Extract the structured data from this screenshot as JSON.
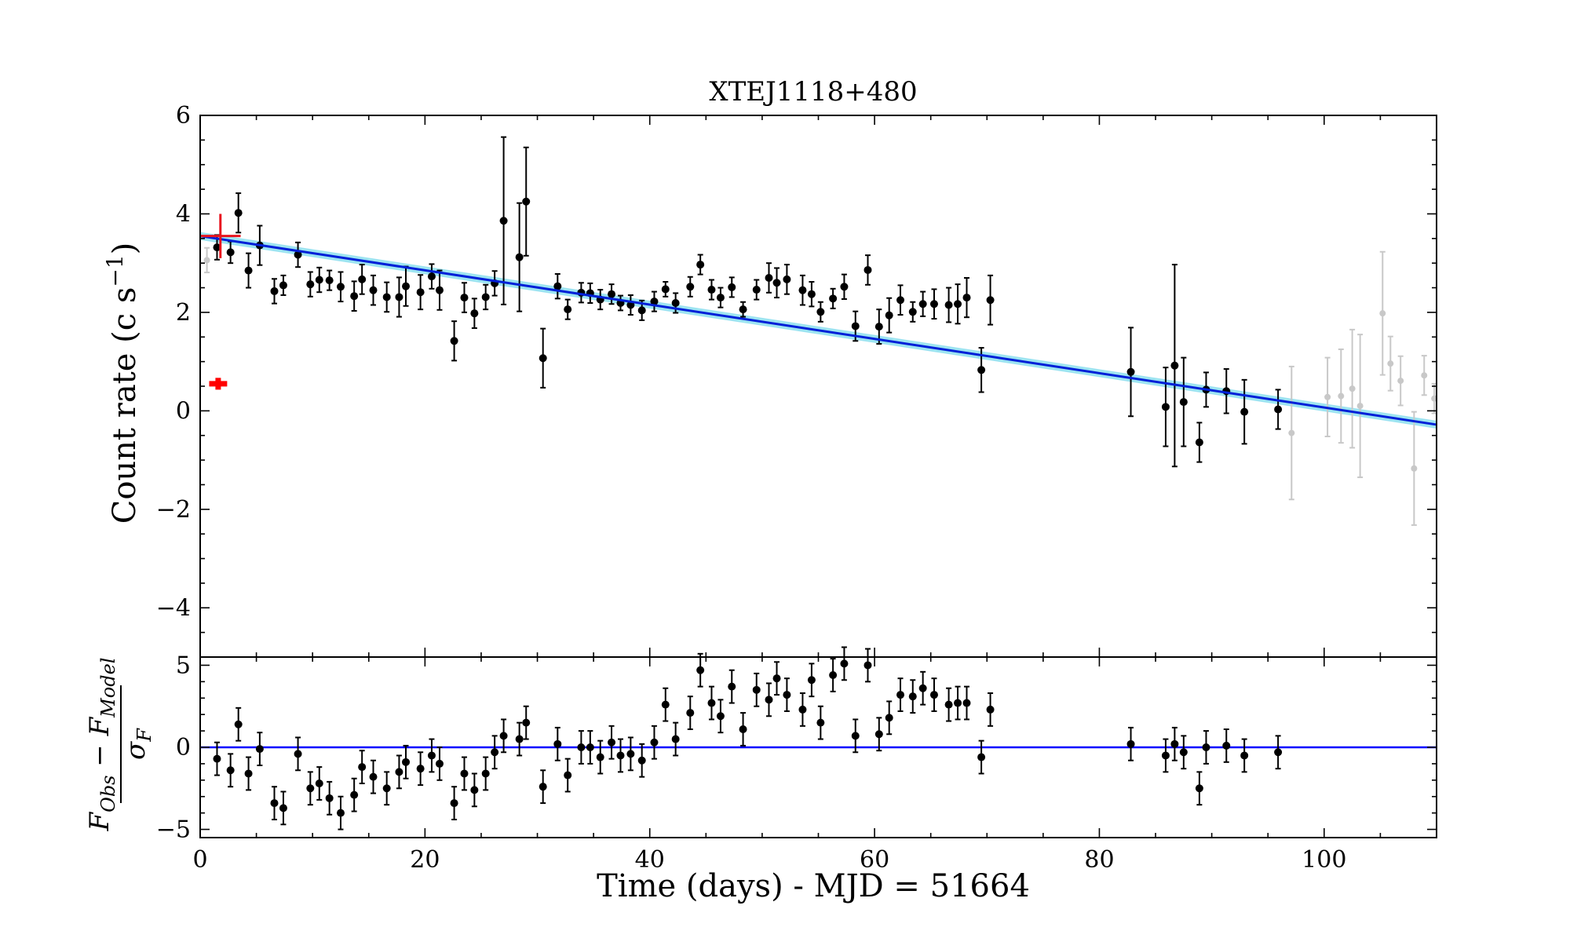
{
  "chart_data": {
    "type": "scatter",
    "title": "XTEJ1118+480",
    "xlabel": "Time (days) - MJD = 51664",
    "xlim": [
      0,
      110
    ],
    "x_ticks": [
      0,
      20,
      40,
      60,
      80,
      100
    ],
    "grid": false,
    "panels": [
      {
        "name": "light-curve",
        "ylabel": "Count rate (c s⁻¹)",
        "ylabel_parts": [
          "Count rate (c s",
          "−1",
          ")"
        ],
        "ylim": [
          -5,
          6
        ],
        "y_ticks": [
          6,
          4,
          2,
          0,
          -2,
          -4
        ],
        "y_tick_labels": [
          "6",
          "4",
          "2",
          "0",
          "−2",
          "−4"
        ],
        "series": [
          {
            "style": "black-points",
            "color": "#000000",
            "points": [
              [
                1.5,
                3.32,
                0.25
              ],
              [
                2.7,
                3.22,
                0.22
              ],
              [
                3.4,
                4.02,
                0.4
              ],
              [
                4.3,
                2.85,
                0.35
              ],
              [
                5.3,
                3.36,
                0.4
              ],
              [
                6.6,
                2.43,
                0.25
              ],
              [
                7.4,
                2.55,
                0.2
              ],
              [
                8.7,
                3.17,
                0.25
              ],
              [
                9.8,
                2.57,
                0.25
              ],
              [
                10.6,
                2.66,
                0.25
              ],
              [
                11.5,
                2.65,
                0.2
              ],
              [
                12.5,
                2.52,
                0.3
              ],
              [
                13.7,
                2.33,
                0.3
              ],
              [
                14.4,
                2.67,
                0.3
              ],
              [
                15.4,
                2.45,
                0.3
              ],
              [
                16.6,
                2.31,
                0.3
              ],
              [
                17.7,
                2.31,
                0.4
              ],
              [
                18.3,
                2.53,
                0.4
              ],
              [
                19.6,
                2.41,
                0.35
              ],
              [
                20.6,
                2.73,
                0.25
              ],
              [
                21.3,
                2.45,
                0.4
              ],
              [
                22.6,
                1.42,
                0.4
              ],
              [
                23.5,
                2.3,
                0.3
              ],
              [
                24.4,
                1.98,
                0.3
              ],
              [
                25.4,
                2.31,
                0.25
              ],
              [
                26.2,
                2.59,
                0.25
              ],
              [
                27.0,
                3.86,
                1.7
              ],
              [
                28.4,
                3.12,
                1.1
              ],
              [
                29.0,
                4.25,
                1.1
              ],
              [
                30.5,
                1.07,
                0.6
              ],
              [
                31.8,
                2.53,
                0.25
              ],
              [
                32.7,
                2.06,
                0.2
              ],
              [
                33.9,
                2.4,
                0.2
              ],
              [
                34.7,
                2.39,
                0.2
              ],
              [
                35.6,
                2.26,
                0.2
              ],
              [
                36.6,
                2.37,
                0.2
              ],
              [
                37.4,
                2.19,
                0.15
              ],
              [
                38.3,
                2.15,
                0.2
              ],
              [
                39.3,
                2.04,
                0.2
              ],
              [
                40.4,
                2.22,
                0.2
              ],
              [
                41.4,
                2.47,
                0.15
              ],
              [
                42.3,
                2.19,
                0.2
              ],
              [
                43.6,
                2.52,
                0.2
              ],
              [
                44.5,
                2.97,
                0.2
              ],
              [
                45.5,
                2.46,
                0.2
              ],
              [
                46.3,
                2.3,
                0.2
              ],
              [
                47.3,
                2.51,
                0.2
              ],
              [
                48.3,
                2.06,
                0.15
              ],
              [
                49.5,
                2.46,
                0.2
              ],
              [
                50.6,
                2.7,
                0.3
              ],
              [
                51.3,
                2.6,
                0.3
              ],
              [
                52.2,
                2.67,
                0.3
              ],
              [
                53.6,
                2.45,
                0.3
              ],
              [
                54.4,
                2.37,
                0.25
              ],
              [
                55.2,
                2.01,
                0.2
              ],
              [
                56.3,
                2.28,
                0.2
              ],
              [
                57.3,
                2.52,
                0.25
              ],
              [
                58.3,
                1.72,
                0.3
              ],
              [
                59.4,
                2.86,
                0.3
              ],
              [
                60.4,
                1.71,
                0.35
              ],
              [
                61.3,
                1.94,
                0.35
              ],
              [
                62.3,
                2.25,
                0.3
              ],
              [
                63.4,
                2.01,
                0.2
              ],
              [
                64.3,
                2.17,
                0.25
              ],
              [
                65.3,
                2.17,
                0.3
              ],
              [
                66.6,
                2.15,
                0.35
              ],
              [
                67.4,
                2.17,
                0.4
              ],
              [
                68.2,
                2.3,
                0.4
              ],
              [
                69.5,
                0.83,
                0.45
              ],
              [
                70.3,
                2.25,
                0.5
              ],
              [
                82.8,
                0.79,
                0.9
              ],
              [
                85.9,
                0.08,
                0.8
              ],
              [
                86.7,
                0.92,
                2.05
              ],
              [
                87.5,
                0.18,
                0.9
              ],
              [
                88.9,
                -0.64,
                0.4
              ],
              [
                89.5,
                0.43,
                0.35
              ],
              [
                91.3,
                0.4,
                0.45
              ],
              [
                92.9,
                -0.02,
                0.65
              ],
              [
                95.9,
                0.03,
                0.4
              ]
            ]
          },
          {
            "style": "grey-points",
            "color": "#c8c8c8",
            "points": [
              [
                0.6,
                3.06,
                0.25
              ],
              [
                97.1,
                -0.45,
                1.35
              ],
              [
                100.3,
                0.28,
                0.8
              ],
              [
                101.5,
                0.3,
                0.95
              ],
              [
                102.5,
                0.45,
                1.2
              ],
              [
                103.2,
                0.1,
                1.45
              ],
              [
                105.2,
                1.98,
                1.25
              ],
              [
                105.9,
                0.96,
                0.55
              ],
              [
                106.8,
                0.61,
                0.5
              ],
              [
                108.0,
                -1.17,
                1.15
              ],
              [
                108.9,
                0.72,
                0.4
              ],
              [
                109.8,
                0.25,
                0.3
              ]
            ]
          },
          {
            "style": "red-cross-large",
            "color": "#e8141e",
            "points": [
              [
                1.8,
                3.55,
                0.45
              ]
            ],
            "xerr": 1.8
          },
          {
            "style": "red-cross-small",
            "color": "#ff0000",
            "points": [
              [
                1.6,
                0.55,
                0.12
              ]
            ],
            "xerr": 0.8
          }
        ],
        "model_line": {
          "color": "#0020d8",
          "band_color": "#26c4e0",
          "x": [
            0,
            110
          ],
          "y": [
            3.55,
            -0.28
          ]
        }
      },
      {
        "name": "residuals",
        "ylabel": "(F_Obs − F_Model) / σ_F",
        "ylabel_num_parts": [
          "F",
          "Obs",
          " − F",
          "Model"
        ],
        "ylabel_den_parts": [
          "σ",
          "F"
        ],
        "ylim": [
          -5.5,
          5.5
        ],
        "y_ticks": [
          5,
          0,
          -5
        ],
        "y_tick_labels": [
          "5",
          "0",
          "−5"
        ],
        "zero_line_color": "#0000ff",
        "series": [
          {
            "style": "black-points",
            "color": "#000000",
            "points": [
              [
                1.5,
                -0.7,
                1.0
              ],
              [
                2.7,
                -1.4,
                1.0
              ],
              [
                3.4,
                1.4,
                1.0
              ],
              [
                4.3,
                -1.6,
                1.0
              ],
              [
                5.3,
                -0.1,
                1.0
              ],
              [
                6.6,
                -3.4,
                1.0
              ],
              [
                7.4,
                -3.7,
                1.0
              ],
              [
                8.7,
                -0.4,
                1.0
              ],
              [
                9.8,
                -2.5,
                1.0
              ],
              [
                10.6,
                -2.2,
                1.0
              ],
              [
                11.5,
                -3.1,
                1.0
              ],
              [
                12.5,
                -4.0,
                1.0
              ],
              [
                13.7,
                -2.9,
                1.0
              ],
              [
                14.4,
                -1.2,
                1.0
              ],
              [
                15.4,
                -1.8,
                1.0
              ],
              [
                16.6,
                -2.5,
                1.0
              ],
              [
                17.7,
                -1.5,
                1.0
              ],
              [
                18.3,
                -0.9,
                1.0
              ],
              [
                19.6,
                -1.3,
                1.0
              ],
              [
                20.6,
                -0.5,
                1.0
              ],
              [
                21.3,
                -1.0,
                1.0
              ],
              [
                22.6,
                -3.4,
                1.0
              ],
              [
                23.5,
                -1.6,
                1.0
              ],
              [
                24.4,
                -2.6,
                1.0
              ],
              [
                25.4,
                -1.6,
                1.0
              ],
              [
                26.2,
                -0.3,
                1.0
              ],
              [
                27.0,
                0.7,
                1.0
              ],
              [
                28.4,
                0.5,
                1.0
              ],
              [
                29.0,
                1.5,
                1.0
              ],
              [
                30.5,
                -2.4,
                1.0
              ],
              [
                31.8,
                0.2,
                1.0
              ],
              [
                32.7,
                -1.7,
                1.0
              ],
              [
                33.9,
                0.0,
                1.0
              ],
              [
                34.7,
                0.0,
                1.0
              ],
              [
                35.6,
                -0.6,
                1.0
              ],
              [
                36.6,
                0.3,
                1.0
              ],
              [
                37.4,
                -0.5,
                1.0
              ],
              [
                38.3,
                -0.4,
                1.0
              ],
              [
                39.3,
                -0.8,
                1.0
              ],
              [
                40.4,
                0.3,
                1.0
              ],
              [
                41.4,
                2.6,
                1.0
              ],
              [
                42.3,
                0.5,
                1.0
              ],
              [
                43.6,
                2.1,
                1.0
              ],
              [
                44.5,
                4.7,
                1.0
              ],
              [
                45.5,
                2.7,
                1.0
              ],
              [
                46.3,
                1.9,
                1.0
              ],
              [
                47.3,
                3.7,
                1.0
              ],
              [
                48.3,
                1.1,
                1.0
              ],
              [
                49.5,
                3.5,
                1.0
              ],
              [
                50.6,
                2.9,
                1.0
              ],
              [
                51.3,
                4.2,
                1.0
              ],
              [
                52.2,
                3.2,
                1.0
              ],
              [
                53.6,
                2.3,
                1.0
              ],
              [
                54.4,
                4.1,
                1.0
              ],
              [
                55.2,
                1.5,
                1.0
              ],
              [
                56.3,
                4.4,
                1.0
              ],
              [
                57.3,
                5.1,
                1.0
              ],
              [
                58.3,
                0.7,
                1.0
              ],
              [
                59.4,
                5.0,
                1.0
              ],
              [
                60.4,
                0.8,
                1.0
              ],
              [
                61.3,
                1.8,
                1.0
              ],
              [
                62.3,
                3.2,
                1.0
              ],
              [
                63.4,
                3.1,
                1.0
              ],
              [
                64.3,
                3.6,
                1.0
              ],
              [
                65.3,
                3.2,
                1.0
              ],
              [
                66.6,
                2.6,
                1.0
              ],
              [
                67.4,
                2.7,
                1.0
              ],
              [
                68.2,
                2.7,
                1.0
              ],
              [
                69.5,
                -0.6,
                1.0
              ],
              [
                70.3,
                2.3,
                1.0
              ],
              [
                82.8,
                0.2,
                1.0
              ],
              [
                85.9,
                -0.5,
                1.0
              ],
              [
                86.7,
                0.2,
                1.0
              ],
              [
                87.5,
                -0.3,
                1.0
              ],
              [
                88.9,
                -2.5,
                1.0
              ],
              [
                89.5,
                0.0,
                1.0
              ],
              [
                91.3,
                0.1,
                1.0
              ],
              [
                92.9,
                -0.5,
                1.0
              ],
              [
                95.9,
                -0.3,
                1.0
              ]
            ]
          }
        ]
      }
    ]
  }
}
